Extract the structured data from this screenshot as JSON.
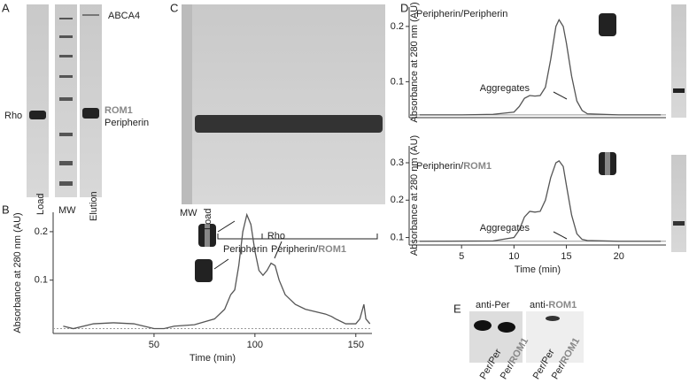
{
  "panel_labels": [
    "A",
    "B",
    "C",
    "D",
    "E"
  ],
  "gel_A": {
    "bands": [
      "ABCA4",
      "Rho",
      "ROM1",
      "Peripherin"
    ],
    "lanes": [
      "Load",
      "MW",
      "Elution"
    ]
  },
  "gel_C": {
    "lanes": [
      "MW",
      "Load"
    ],
    "groups": [
      "Peripherin",
      "Peripherin/",
      "ROM1"
    ]
  },
  "blot_E": {
    "antibodies": [
      "anti-Per",
      "anti-",
      "ROM1"
    ],
    "lanes": [
      "Per/Per",
      "Per/",
      "ROM1",
      "Per/Per",
      "Per/",
      "ROM1"
    ]
  },
  "chart_data": [
    {
      "type": "line",
      "color": "#555",
      "x": [
        5,
        10,
        20,
        30,
        40,
        50,
        55,
        60,
        70,
        80,
        85,
        88,
        90,
        92,
        94,
        96,
        98,
        100,
        102,
        104,
        106,
        108,
        110,
        112,
        115,
        120,
        125,
        130,
        135,
        138,
        140,
        145,
        150,
        152,
        154,
        155,
        157
      ],
      "values": [
        0.005,
        0.0,
        0.01,
        0.012,
        0.01,
        0.0,
        0.0,
        0.005,
        0.008,
        0.02,
        0.04,
        0.07,
        0.08,
        0.13,
        0.2,
        0.235,
        0.215,
        0.16,
        0.12,
        0.11,
        0.12,
        0.135,
        0.13,
        0.1,
        0.07,
        0.05,
        0.04,
        0.035,
        0.03,
        0.025,
        0.02,
        0.01,
        0.01,
        0.02,
        0.05,
        0.02,
        0.01
      ],
      "xlim": [
        0,
        158
      ],
      "ylim": [
        -0.01,
        0.24
      ],
      "xticks": [
        50,
        100,
        150
      ],
      "yticks": [
        0.1,
        0.2
      ],
      "reference_line": 0,
      "xlabel": "Time (min)",
      "ylabel": "Absorbance at 280 nm (AU)",
      "annotations": [
        "Rho"
      ]
    },
    {
      "type": "line",
      "color": "#555",
      "title": [
        "Peripherin/Peripherin"
      ],
      "x": [
        1,
        5,
        8,
        10,
        10.5,
        11,
        11.5,
        12,
        12.5,
        13,
        13.5,
        14,
        14.3,
        14.7,
        15,
        15.5,
        16,
        16.5,
        17,
        20,
        24
      ],
      "values": [
        0.04,
        0.04,
        0.041,
        0.045,
        0.055,
        0.07,
        0.075,
        0.074,
        0.075,
        0.09,
        0.14,
        0.2,
        0.212,
        0.2,
        0.17,
        0.11,
        0.065,
        0.048,
        0.042,
        0.04,
        0.04
      ],
      "xlim": [
        0,
        24.5
      ],
      "ylim": [
        0.035,
        0.235
      ],
      "yticks": [
        0.1,
        0.2
      ],
      "reference_line": 0.04,
      "ylabel": "Absorbance at 280 nm (AU)",
      "annotations": [
        "Aggregates"
      ]
    },
    {
      "type": "line",
      "color": "#555",
      "title": [
        "Peripherin/",
        "ROM1"
      ],
      "x": [
        1,
        8,
        10,
        10.5,
        11,
        11.5,
        12,
        12.5,
        13,
        13.5,
        14,
        14.3,
        14.7,
        15,
        15.5,
        16,
        16.5,
        17,
        20,
        24
      ],
      "values": [
        0.09,
        0.091,
        0.1,
        0.12,
        0.155,
        0.17,
        0.168,
        0.17,
        0.2,
        0.26,
        0.3,
        0.305,
        0.29,
        0.24,
        0.16,
        0.11,
        0.095,
        0.092,
        0.09,
        0.09
      ],
      "xlim": [
        0,
        24.5
      ],
      "ylim": [
        0.08,
        0.345
      ],
      "xticks": [
        5,
        10,
        15,
        20
      ],
      "yticks": [
        0.1,
        0.2,
        0.3
      ],
      "reference_line": 0.09,
      "xlabel": "Time (min)",
      "ylabel": "Absorbance at 280 nm (AU)",
      "annotations": [
        "Aggregates"
      ]
    }
  ]
}
